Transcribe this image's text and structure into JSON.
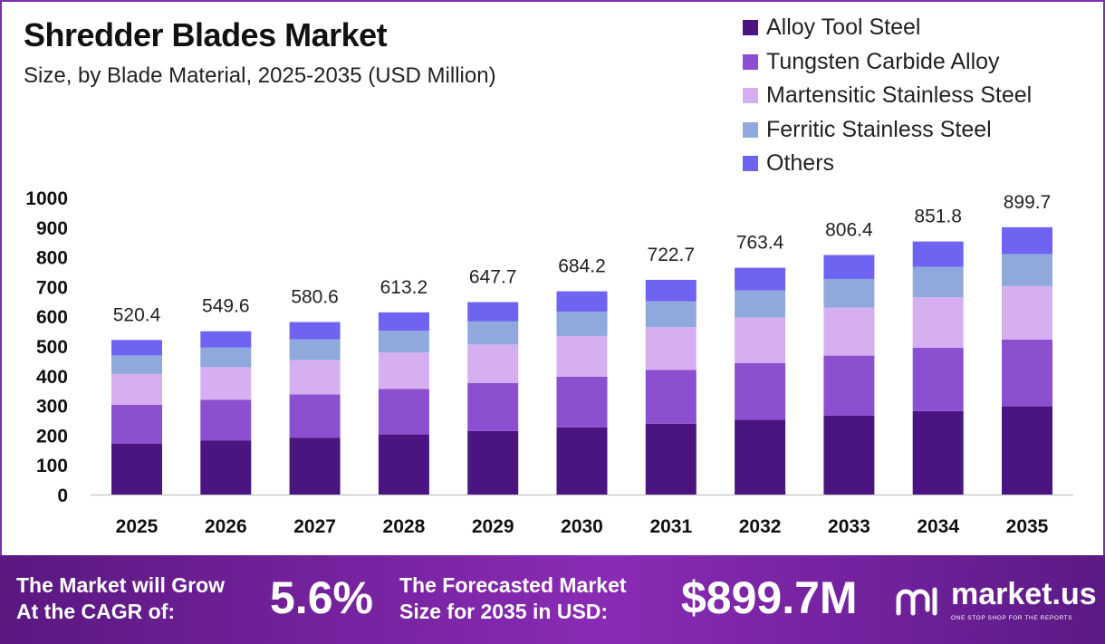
{
  "header": {
    "title": "Shredder Blades Market",
    "subtitle": "Size, by Blade Material, 2025-2035 (USD Million)"
  },
  "colors": {
    "border": "#7b2fb0",
    "axis": "#cccccc",
    "footer_start": "#5a1880",
    "footer_end": "#8a2bb5"
  },
  "chart_data": {
    "type": "stacked-bar",
    "title": "Shredder Blades Market",
    "subtitle": "Size, by Blade Material, 2025-2035 (USD Million)",
    "xlabel": "",
    "ylabel": "",
    "ylim": [
      0,
      1000
    ],
    "yticks": [
      0,
      100,
      200,
      300,
      400,
      500,
      600,
      700,
      800,
      900,
      1000
    ],
    "grid": false,
    "legend_position": "top-right",
    "categories": [
      "2025",
      "2026",
      "2027",
      "2028",
      "2029",
      "2030",
      "2031",
      "2032",
      "2033",
      "2034",
      "2035"
    ],
    "totals": [
      "520.4",
      "549.6",
      "580.6",
      "613.2",
      "647.7",
      "684.2",
      "722.7",
      "763.4",
      "806.4",
      "851.8",
      "899.7"
    ],
    "series": [
      {
        "name": "Alloy Tool Steel",
        "color": "#4a1580",
        "values": [
          171.7,
          181.4,
          191.6,
          202.4,
          213.7,
          225.8,
          238.5,
          251.9,
          266.1,
          281.1,
          296.9
        ]
      },
      {
        "name": "Tungsten Carbide Alloy",
        "color": "#8b4fcf",
        "values": [
          130.1,
          137.4,
          145.2,
          153.3,
          161.9,
          171.1,
          180.7,
          190.9,
          201.6,
          213.0,
          224.9
        ]
      },
      {
        "name": "Martensitic Stainless Steel",
        "color": "#d5aff0",
        "values": [
          104.1,
          109.9,
          116.1,
          122.6,
          129.5,
          136.8,
          144.5,
          152.7,
          161.3,
          170.4,
          179.9
        ]
      },
      {
        "name": "Ferritic Stainless Steel",
        "color": "#8fa9dc",
        "values": [
          62.4,
          66.0,
          69.7,
          73.6,
          77.7,
          82.1,
          86.7,
          91.6,
          96.8,
          102.2,
          108.0
        ]
      },
      {
        "name": "Others",
        "color": "#6f63f2",
        "values": [
          52.1,
          54.9,
          58.0,
          61.3,
          64.9,
          68.4,
          72.3,
          76.3,
          80.6,
          85.1,
          90.0
        ]
      }
    ]
  },
  "footer": {
    "cagr_text_line1": "The Market will Grow",
    "cagr_text_line2": "At the CAGR of:",
    "cagr_value": "5.6%",
    "forecast_text_line1": "The Forecasted Market",
    "forecast_text_line2": "Size for 2035 in USD:",
    "forecast_value": "$899.7M",
    "brand_name": "market.us",
    "brand_tagline": "ONE STOP SHOP FOR THE REPORTS"
  }
}
